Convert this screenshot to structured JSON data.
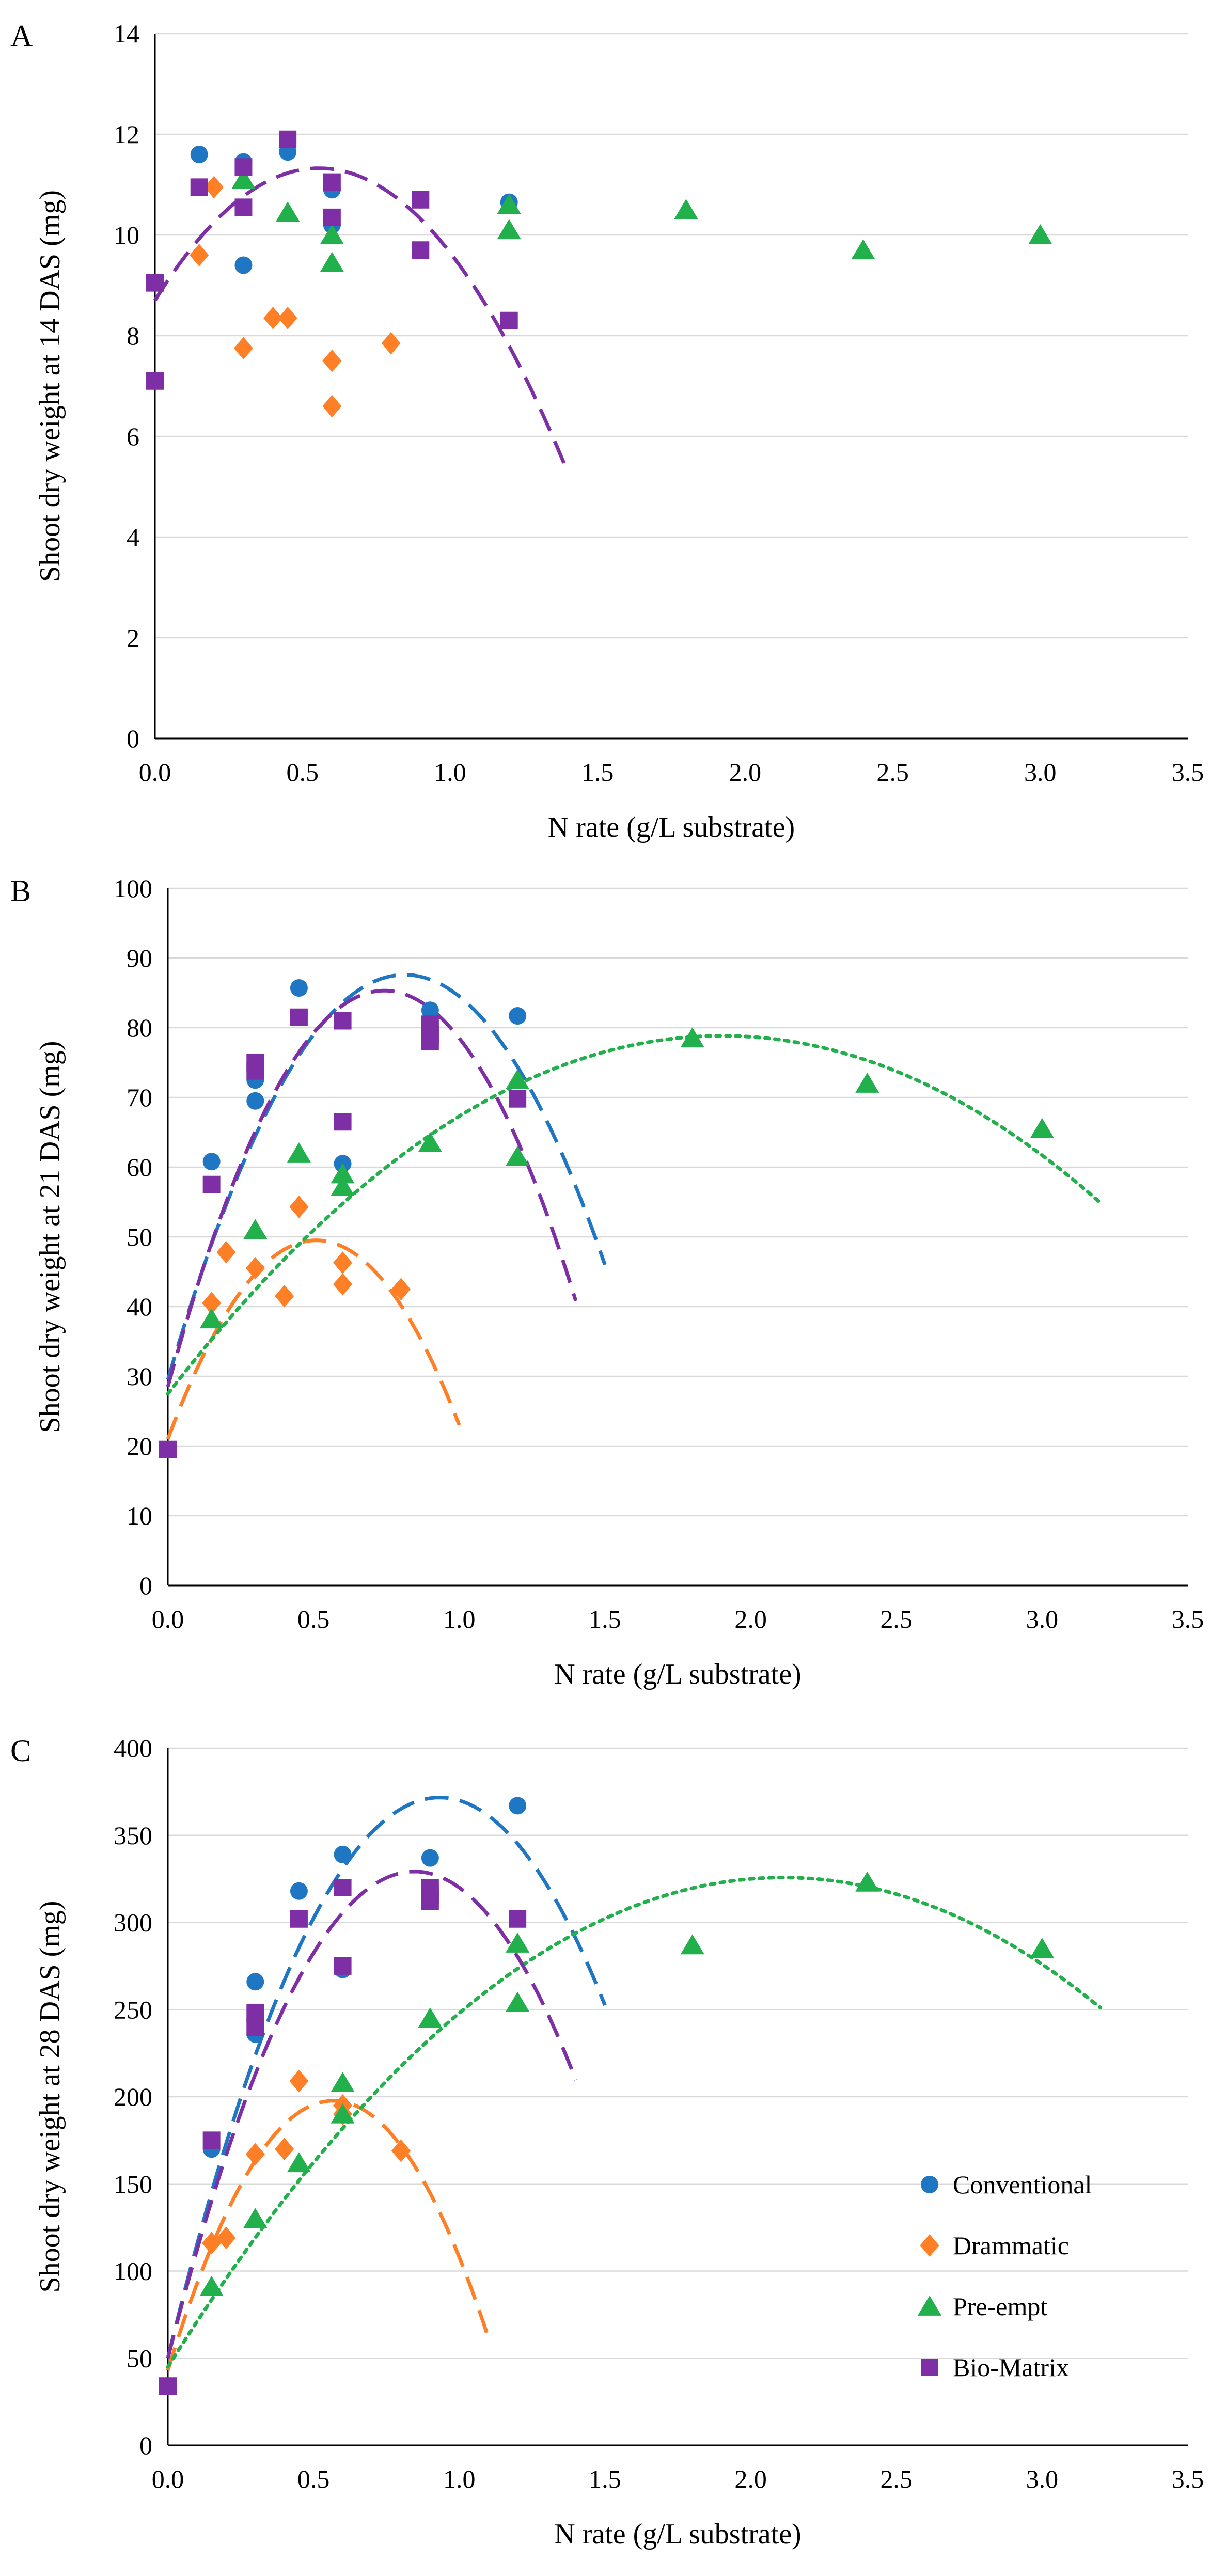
{
  "series_colors": {
    "Conventional": "#1f77c4",
    "Drammatic": "#ff7f27",
    "Pre-empt": "#21b04b",
    "Bio-Matrix": "#7e2fa5"
  },
  "legend": {
    "entries": [
      "Conventional",
      "Drammatic",
      "Pre-empt",
      "Bio-Matrix"
    ],
    "placement": "right of panel C"
  },
  "chart_data": [
    {
      "type": "scatter",
      "panel": "A",
      "xlabel": "N rate (g/L substrate)",
      "ylabel": "Shoot dry weight at 14 DAS (mg)",
      "xlim": [
        0,
        3.5
      ],
      "ylim": [
        0,
        14
      ],
      "xticks": [
        "0.0",
        "0.5",
        "1.0",
        "1.5",
        "2.0",
        "2.5",
        "3.0",
        "3.5"
      ],
      "yticks": [
        "0",
        "2",
        "4",
        "6",
        "8",
        "10",
        "12",
        "14"
      ],
      "grid": "horizontal",
      "series": [
        {
          "name": "Conventional",
          "marker": "circle",
          "x": [
            0.15,
            0.3,
            0.3,
            0.45,
            0.6,
            0.6,
            0.9,
            1.2
          ],
          "y": [
            11.6,
            11.45,
            9.4,
            11.65,
            10.9,
            10.2,
            10.7,
            10.65
          ]
        },
        {
          "name": "Drammatic",
          "marker": "diamond",
          "x": [
            0.15,
            0.2,
            0.3,
            0.4,
            0.45,
            0.6,
            0.6,
            0.8
          ],
          "y": [
            9.6,
            10.95,
            7.75,
            8.35,
            8.35,
            7.5,
            6.6,
            7.85
          ]
        },
        {
          "name": "Pre-empt",
          "marker": "triangle",
          "x": [
            0.3,
            0.45,
            0.6,
            0.6,
            1.2,
            1.2,
            1.8,
            2.4,
            3.0
          ],
          "y": [
            11.1,
            10.45,
            10.0,
            9.45,
            10.1,
            10.6,
            10.5,
            9.7,
            10.0
          ]
        },
        {
          "name": "Bio-Matrix",
          "marker": "square",
          "x": [
            0.0,
            0.0,
            0.15,
            0.3,
            0.3,
            0.45,
            0.6,
            0.6,
            0.9,
            0.9,
            1.2
          ],
          "y": [
            9.05,
            7.1,
            10.95,
            11.35,
            10.55,
            11.9,
            11.05,
            10.35,
            10.7,
            9.7,
            8.3
          ]
        }
      ],
      "fits": [
        {
          "name": "Bio-Matrix",
          "style": "dashed",
          "coef": [
            -8.5,
            9.45,
            8.7
          ],
          "x_range": [
            0,
            1.4
          ]
        }
      ]
    },
    {
      "type": "scatter",
      "panel": "B",
      "xlabel": "N rate (g/L substrate)",
      "ylabel": "Shoot dry weight at 21 DAS (mg)",
      "xlim": [
        0,
        3.5
      ],
      "ylim": [
        0,
        100
      ],
      "xticks": [
        "0.0",
        "0.5",
        "1.0",
        "1.5",
        "2.0",
        "2.5",
        "3.0",
        "3.5"
      ],
      "yticks": [
        "0",
        "10",
        "20",
        "30",
        "40",
        "50",
        "60",
        "70",
        "80",
        "90",
        "100"
      ],
      "grid": "horizontal",
      "series": [
        {
          "name": "Conventional",
          "marker": "circle",
          "x": [
            0.15,
            0.3,
            0.3,
            0.45,
            0.6,
            0.9,
            1.2
          ],
          "y": [
            60.8,
            69.5,
            72.5,
            85.7,
            60.5,
            82.5,
            81.7
          ]
        },
        {
          "name": "Drammatic",
          "marker": "diamond",
          "x": [
            0.15,
            0.2,
            0.3,
            0.4,
            0.45,
            0.6,
            0.6,
            0.8
          ],
          "y": [
            40.5,
            47.8,
            45.5,
            41.5,
            54.3,
            46.3,
            43.2,
            42.5
          ]
        },
        {
          "name": "Pre-empt",
          "marker": "triangle",
          "x": [
            0.15,
            0.3,
            0.45,
            0.6,
            0.6,
            0.9,
            1.2,
            1.2,
            1.8,
            2.4,
            3.0
          ],
          "y": [
            38.2,
            51.0,
            62.0,
            59.0,
            57.2,
            63.5,
            72.5,
            61.5,
            78.5,
            72.0,
            65.5
          ]
        },
        {
          "name": "Bio-Matrix",
          "marker": "square",
          "x": [
            0.0,
            0.15,
            0.3,
            0.3,
            0.45,
            0.6,
            0.6,
            0.9,
            0.9,
            0.9,
            1.2
          ],
          "y": [
            19.5,
            57.5,
            73.8,
            75.0,
            81.5,
            81.0,
            66.5,
            80.5,
            78.0,
            79.0,
            69.8
          ]
        }
      ],
      "fits": [
        {
          "name": "Conventional",
          "style": "dashed",
          "coef": [
            -88.0,
            143.0,
            29.5
          ],
          "x_range": [
            0,
            1.5
          ]
        },
        {
          "name": "Drammatic",
          "style": "dashed",
          "coef": [
            -110.0,
            112.0,
            21.0
          ],
          "x_range": [
            0,
            1.0
          ]
        },
        {
          "name": "Pre-empt",
          "style": "dotted",
          "coef": [
            -14.2,
            54.0,
            27.5
          ],
          "x_range": [
            0,
            3.2
          ]
        },
        {
          "name": "Bio-Matrix",
          "style": "dashed",
          "coef": [
            -103.0,
            153.0,
            28.5
          ],
          "x_range": [
            0,
            1.4
          ]
        }
      ]
    },
    {
      "type": "scatter",
      "panel": "C",
      "xlabel": "N rate (g/L substrate)",
      "ylabel": "Shoot dry weight at 28 DAS (mg)",
      "xlim": [
        0,
        3.5
      ],
      "ylim": [
        0,
        400
      ],
      "xticks": [
        "0.0",
        "0.5",
        "1.0",
        "1.5",
        "2.0",
        "2.5",
        "3.0",
        "3.5"
      ],
      "yticks": [
        "0",
        "50",
        "100",
        "150",
        "200",
        "250",
        "300",
        "350",
        "400"
      ],
      "grid": "horizontal",
      "series": [
        {
          "name": "Conventional",
          "marker": "circle",
          "x": [
            0.15,
            0.3,
            0.3,
            0.45,
            0.6,
            0.6,
            0.9,
            1.2
          ],
          "y": [
            170,
            266,
            236,
            318,
            339,
            273,
            337,
            367
          ]
        },
        {
          "name": "Drammatic",
          "marker": "diamond",
          "x": [
            0.15,
            0.2,
            0.3,
            0.4,
            0.45,
            0.6,
            0.6,
            0.8
          ],
          "y": [
            116,
            119,
            167,
            170,
            209,
            195,
            190,
            169
          ]
        },
        {
          "name": "Pre-empt",
          "marker": "triangle",
          "x": [
            0.15,
            0.3,
            0.45,
            0.6,
            0.6,
            0.9,
            1.2,
            1.2,
            1.8,
            2.4,
            3.0
          ],
          "y": [
            91,
            130,
            162,
            208,
            190,
            245,
            288,
            254,
            287,
            323,
            285
          ]
        },
        {
          "name": "Bio-Matrix",
          "marker": "square",
          "x": [
            0.0,
            0.15,
            0.3,
            0.3,
            0.45,
            0.6,
            0.6,
            0.9,
            0.9,
            0.9,
            1.2
          ],
          "y": [
            34,
            175,
            248,
            240,
            302,
            320,
            275,
            320,
            312,
            316,
            302
          ]
        }
      ],
      "fits": [
        {
          "name": "Conventional",
          "style": "dashed",
          "coef": [
            -370.0,
            690.0,
            50.0
          ],
          "x_range": [
            0,
            1.5
          ]
        },
        {
          "name": "Drammatic",
          "style": "dashed",
          "coef": [
            -480.0,
            545.0,
            43.0
          ],
          "x_range": [
            0,
            1.1
          ]
        },
        {
          "name": "Pre-empt",
          "style": "dotted",
          "coef": [
            -63.0,
            266.0,
            45.0
          ],
          "x_range": [
            0,
            3.2
          ]
        },
        {
          "name": "Bio-Matrix",
          "style": "dashed",
          "coef": [
            -390.0,
            660.0,
            50.0
          ],
          "x_range": [
            0,
            1.4
          ]
        }
      ]
    }
  ]
}
